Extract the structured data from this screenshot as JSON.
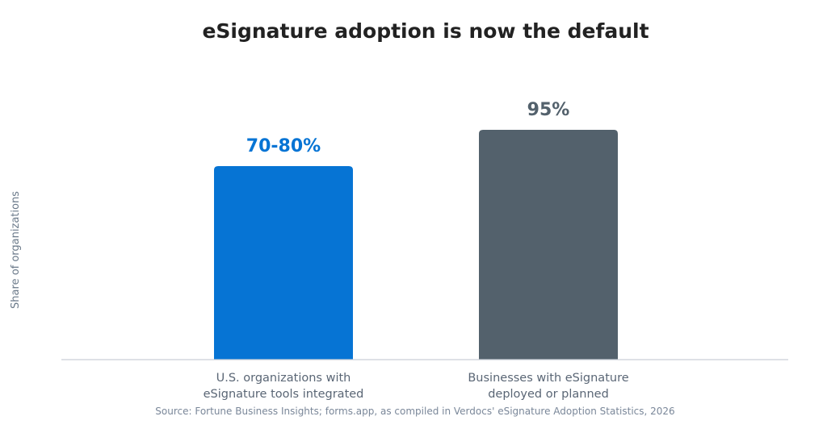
{
  "chart_data": {
    "type": "bar",
    "title": "eSignature adoption is now the default",
    "ylabel": "Share of organizations",
    "xlabel": "",
    "ylim": [
      0,
      100
    ],
    "grid": false,
    "legend": "none",
    "categories": [
      [
        "U.S. organizations with",
        "eSignature tools integrated"
      ],
      [
        "Businesses with eSignature",
        "deployed or planned"
      ]
    ],
    "values": [
      80,
      95
    ],
    "range_low": [
      70,
      null
    ],
    "data_labels": [
      "70-80%",
      "95%"
    ],
    "colors": [
      "#0674d4",
      "#53616c"
    ],
    "source": "Source: Fortune Business Insights; forms.app, as compiled in Verdocs' eSignature Adoption Statistics, 2026"
  }
}
